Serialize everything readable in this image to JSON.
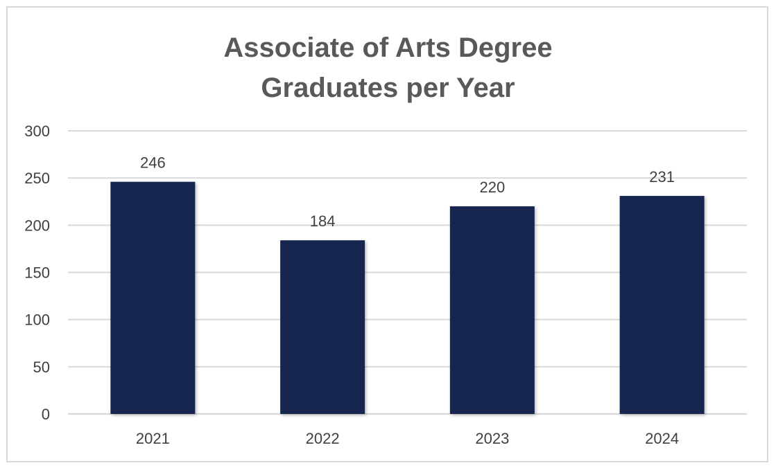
{
  "chart_data": {
    "type": "bar",
    "title_lines": [
      "Associate of Arts Degree",
      "Graduates per Year"
    ],
    "xlabel": "",
    "ylabel": "",
    "categories": [
      "2021",
      "2022",
      "2023",
      "2024"
    ],
    "values": [
      246,
      184,
      220,
      231
    ],
    "data_labels": [
      "246",
      "184",
      "220",
      "231"
    ],
    "ylim": [
      0,
      300
    ],
    "yticks": [
      0,
      50,
      100,
      150,
      200,
      250,
      300
    ],
    "grid": true,
    "legend": "none",
    "bar_color": "#16284f",
    "grid_color": "#d9d9d9"
  }
}
